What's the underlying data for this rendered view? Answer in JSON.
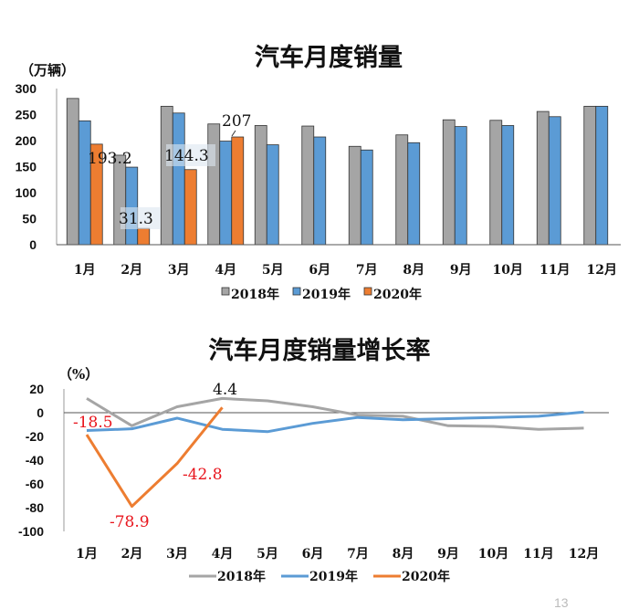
{
  "chart_data": [
    {
      "type": "bar",
      "title": "汽车月度销量",
      "ylabel": "（万辆）",
      "ylim": [
        0,
        300
      ],
      "yticks": [
        0,
        50,
        100,
        150,
        200,
        250,
        300
      ],
      "categories": [
        "1月",
        "2月",
        "3月",
        "4月",
        "5月",
        "6月",
        "7月",
        "8月",
        "9月",
        "10月",
        "11月",
        "12月"
      ],
      "series": [
        {
          "name": "2018年",
          "color": "#a5a5a5",
          "values": [
            281,
            172,
            266,
            232,
            229,
            228,
            189,
            211,
            240,
            239,
            256,
            266
          ]
        },
        {
          "name": "2019年",
          "color": "#5b9bd5",
          "values": [
            238,
            149,
            253,
            199,
            192,
            207,
            182,
            196,
            227,
            229,
            246,
            266
          ]
        },
        {
          "name": "2020年",
          "color": "#ed7d31",
          "values": [
            193.2,
            31.3,
            144.3,
            207,
            null,
            null,
            null,
            null,
            null,
            null,
            null,
            null
          ]
        }
      ],
      "data_labels": [
        {
          "series": "2020年",
          "month": "1月",
          "text": "193.2"
        },
        {
          "series": "2020年",
          "month": "2月",
          "text": "31.3"
        },
        {
          "series": "2020年",
          "month": "3月",
          "text": "144.3"
        },
        {
          "series": "2020年",
          "month": "4月",
          "text": "207"
        }
      ],
      "legend": "bottom",
      "grid": false
    },
    {
      "type": "line",
      "title": "汽车月度销量增长率",
      "ylabel": "（%）",
      "ylim": [
        -100,
        20
      ],
      "yticks": [
        -100,
        -80,
        -60,
        -40,
        -20,
        0,
        20
      ],
      "categories": [
        "1月",
        "2月",
        "3月",
        "4月",
        "5月",
        "6月",
        "7月",
        "8月",
        "9月",
        "10月",
        "11月",
        "12月"
      ],
      "series": [
        {
          "name": "2018年",
          "color": "#a5a5a5",
          "values": [
            12,
            -11,
            5,
            12,
            10,
            5,
            -2,
            -3,
            -11,
            -11.5,
            -14,
            -13
          ]
        },
        {
          "name": "2019年",
          "color": "#5b9bd5",
          "values": [
            -15,
            -13.6,
            -4.6,
            -14,
            -16,
            -9,
            -4,
            -6,
            -5,
            -4,
            -3,
            0.5
          ]
        },
        {
          "name": "2020年",
          "color": "#ed7d31",
          "values": [
            -18.5,
            -78.9,
            -42.8,
            4.4,
            null,
            null,
            null,
            null,
            null,
            null,
            null,
            null
          ]
        }
      ],
      "data_labels": [
        {
          "series": "2020年",
          "month": "1月",
          "text": "-18.5",
          "color": "#e8141c"
        },
        {
          "series": "2020年",
          "month": "2月",
          "text": "-78.9",
          "color": "#e8141c"
        },
        {
          "series": "2020年",
          "month": "3月",
          "text": "-42.8",
          "color": "#e8141c"
        },
        {
          "series": "2020年",
          "month": "4月",
          "text": "4.4",
          "color": "#111111"
        }
      ],
      "legend": "bottom",
      "grid": false
    }
  ],
  "page_number": "13"
}
